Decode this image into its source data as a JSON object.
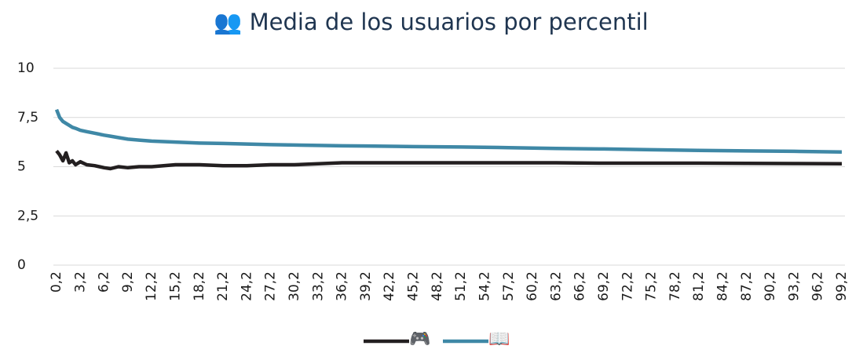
{
  "chart_data": {
    "type": "line",
    "title": "👥 Media de los usuarios por percentil",
    "x": [
      0.2,
      0.6,
      1,
      1.4,
      1.8,
      2.2,
      2.6,
      3.2,
      4,
      5,
      6.2,
      7,
      8,
      9.2,
      10.6,
      12.2,
      15.2,
      18.2,
      21.2,
      24.2,
      27.2,
      30.2,
      33.2,
      36.2,
      39.2,
      45.2,
      51.2,
      57.2,
      63.2,
      69.2,
      75.2,
      81.2,
      87.2,
      93.2,
      99.2
    ],
    "series": [
      {
        "name": "🎮",
        "color": "#231f20",
        "values": [
          5.8,
          5.6,
          5.3,
          5.7,
          5.2,
          5.3,
          5.1,
          5.25,
          5.1,
          5.05,
          4.95,
          4.9,
          5.0,
          4.95,
          5.0,
          5.0,
          5.1,
          5.1,
          5.05,
          5.05,
          5.1,
          5.1,
          5.15,
          5.2,
          5.2,
          5.2,
          5.2,
          5.2,
          5.2,
          5.18,
          5.18,
          5.18,
          5.17,
          5.16,
          5.15
        ]
      },
      {
        "name": "📖",
        "color": "#3f88a6",
        "values": [
          7.9,
          7.5,
          7.3,
          7.2,
          7.1,
          7.0,
          6.95,
          6.85,
          6.78,
          6.7,
          6.6,
          6.55,
          6.48,
          6.4,
          6.35,
          6.3,
          6.25,
          6.2,
          6.18,
          6.15,
          6.12,
          6.1,
          6.08,
          6.06,
          6.05,
          6.02,
          6.0,
          5.97,
          5.93,
          5.9,
          5.86,
          5.83,
          5.8,
          5.78,
          5.75
        ]
      }
    ],
    "xlim": [
      0.2,
      99.2
    ],
    "xticks": [
      {
        "value": 0.2,
        "label": "0,2"
      },
      {
        "value": 3.2,
        "label": "3,2"
      },
      {
        "value": 6.2,
        "label": "6,2"
      },
      {
        "value": 9.2,
        "label": "9,2"
      },
      {
        "value": 12.2,
        "label": "12,2"
      },
      {
        "value": 15.2,
        "label": "15,2"
      },
      {
        "value": 18.2,
        "label": "18,2"
      },
      {
        "value": 21.2,
        "label": "21,2"
      },
      {
        "value": 24.2,
        "label": "24,2"
      },
      {
        "value": 27.2,
        "label": "27,2"
      },
      {
        "value": 30.2,
        "label": "30,2"
      },
      {
        "value": 33.2,
        "label": "33,2"
      },
      {
        "value": 36.2,
        "label": "36,2"
      },
      {
        "value": 39.2,
        "label": "39,2"
      },
      {
        "value": 42.2,
        "label": "42,2"
      },
      {
        "value": 45.2,
        "label": "45,2"
      },
      {
        "value": 48.2,
        "label": "48,2"
      },
      {
        "value": 51.2,
        "label": "51,2"
      },
      {
        "value": 54.2,
        "label": "54,2"
      },
      {
        "value": 57.2,
        "label": "57,2"
      },
      {
        "value": 60.2,
        "label": "60,2"
      },
      {
        "value": 63.2,
        "label": "63,2"
      },
      {
        "value": 66.2,
        "label": "66,2"
      },
      {
        "value": 69.2,
        "label": "69,2"
      },
      {
        "value": 72.2,
        "label": "72,2"
      },
      {
        "value": 75.2,
        "label": "75,2"
      },
      {
        "value": 78.2,
        "label": "78,2"
      },
      {
        "value": 81.2,
        "label": "81,2"
      },
      {
        "value": 84.2,
        "label": "84,2"
      },
      {
        "value": 87.2,
        "label": "87,2"
      },
      {
        "value": 90.2,
        "label": "90,2"
      },
      {
        "value": 93.2,
        "label": "93,2"
      },
      {
        "value": 96.2,
        "label": "96,2"
      },
      {
        "value": 99.2,
        "label": "99,2"
      }
    ],
    "ylim": [
      0,
      10
    ],
    "yticks": [
      0,
      {
        "value": 2.5,
        "label": "2,5"
      },
      5,
      {
        "value": 7.5,
        "label": "7,5"
      },
      10
    ],
    "grid": true,
    "legend": "bottom"
  }
}
